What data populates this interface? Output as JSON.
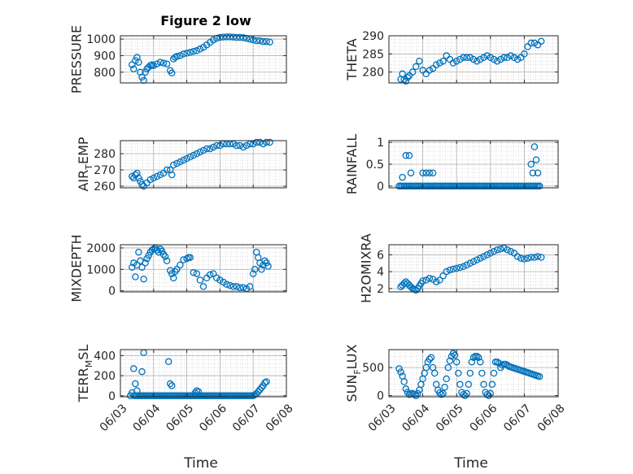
{
  "figure_title": "Figure 2 low",
  "marker_color": "#0072BD",
  "chart_data": [
    {
      "id": "pressure",
      "type": "scatter",
      "title": "Figure 2 low",
      "ylabel": "PRESSURE",
      "ylabel_sub": null,
      "ylim": [
        735,
        1020
      ],
      "yticks": [
        800,
        900,
        1000
      ],
      "xlim": [
        0,
        5
      ],
      "xticks": [
        "06/03",
        "06/04",
        "06/05",
        "06/06",
        "06/07",
        "06/08"
      ],
      "xlabel": "",
      "grid": true,
      "x": [
        0.35,
        0.4,
        0.45,
        0.5,
        0.55,
        0.6,
        0.65,
        0.7,
        0.75,
        0.8,
        0.85,
        0.9,
        0.95,
        1.0,
        1.1,
        1.2,
        1.3,
        1.4,
        1.5,
        1.55,
        1.6,
        1.65,
        1.7,
        1.8,
        1.9,
        2.0,
        2.1,
        2.2,
        2.3,
        2.4,
        2.5,
        2.6,
        2.7,
        2.8,
        2.9,
        3.0,
        3.1,
        3.2,
        3.3,
        3.4,
        3.5,
        3.6,
        3.7,
        3.8,
        3.9,
        4.0,
        4.1,
        4.2,
        4.3,
        4.4,
        4.5
      ],
      "y": [
        845,
        820,
        870,
        890,
        860,
        800,
        770,
        750,
        800,
        820,
        830,
        840,
        845,
        840,
        850,
        860,
        855,
        850,
        810,
        795,
        880,
        890,
        895,
        900,
        910,
        915,
        920,
        925,
        930,
        940,
        950,
        965,
        980,
        995,
        1005,
        1010,
        1012,
        1013,
        1013,
        1012,
        1010,
        1010,
        1008,
        1005,
        1000,
        995,
        990,
        990,
        985,
        985,
        982
      ]
    },
    {
      "id": "theta",
      "type": "scatter",
      "ylabel": "THETA",
      "ylabel_sub": null,
      "ylim": [
        277,
        290
      ],
      "yticks": [
        280,
        285,
        290
      ],
      "xlim": [
        0,
        5
      ],
      "xticks": [
        "06/03",
        "06/04",
        "06/05",
        "06/06",
        "06/07",
        "06/08"
      ],
      "xlabel": "",
      "grid": true,
      "x": [
        0.35,
        0.4,
        0.45,
        0.5,
        0.55,
        0.6,
        0.7,
        0.8,
        0.9,
        1.0,
        1.1,
        1.2,
        1.3,
        1.4,
        1.5,
        1.6,
        1.7,
        1.8,
        1.9,
        2.0,
        2.1,
        2.2,
        2.3,
        2.4,
        2.5,
        2.6,
        2.7,
        2.8,
        2.9,
        3.0,
        3.1,
        3.2,
        3.3,
        3.4,
        3.5,
        3.6,
        3.7,
        3.8,
        3.9,
        4.0,
        4.1,
        4.2,
        4.3,
        4.4,
        4.5
      ],
      "y": [
        278,
        279.5,
        278,
        277.5,
        278.5,
        279,
        280,
        281.5,
        283,
        280.5,
        279.5,
        280.5,
        281,
        282,
        282.5,
        283,
        284.5,
        283.5,
        282.5,
        283,
        283.5,
        284,
        284,
        284,
        283.5,
        283,
        283.5,
        284,
        284.5,
        284,
        283.5,
        283,
        283.5,
        284,
        284,
        284.5,
        284,
        283.5,
        284,
        285,
        287,
        288,
        288,
        287.5,
        288.5
      ]
    },
    {
      "id": "air_temp",
      "type": "scatter",
      "ylabel": "AIR",
      "ylabel_sub": "T",
      "ylabel_end": "EMP",
      "ylim": [
        259,
        288
      ],
      "yticks": [
        260,
        270,
        280
      ],
      "xlim": [
        0,
        5
      ],
      "xticks": [
        "06/03",
        "06/04",
        "06/05",
        "06/06",
        "06/07",
        "06/08"
      ],
      "xlabel": "",
      "grid": true,
      "x": [
        0.35,
        0.4,
        0.45,
        0.5,
        0.55,
        0.6,
        0.65,
        0.7,
        0.8,
        0.9,
        1.0,
        1.1,
        1.2,
        1.3,
        1.4,
        1.5,
        1.55,
        1.6,
        1.7,
        1.8,
        1.9,
        2.0,
        2.1,
        2.2,
        2.3,
        2.4,
        2.5,
        2.6,
        2.7,
        2.8,
        2.9,
        3.0,
        3.1,
        3.2,
        3.3,
        3.4,
        3.5,
        3.6,
        3.7,
        3.8,
        3.9,
        4.0,
        4.1,
        4.2,
        4.3,
        4.4,
        4.5
      ],
      "y": [
        266,
        265,
        267,
        268,
        265,
        263,
        261,
        260,
        262,
        264,
        265,
        266,
        267,
        268,
        270,
        270,
        267,
        273,
        274,
        275,
        276,
        277,
        278,
        279,
        280,
        281,
        282,
        283,
        283,
        284,
        285,
        285,
        286,
        286,
        286,
        286,
        285,
        285,
        284,
        285,
        286,
        286,
        287,
        287,
        286,
        287,
        287
      ]
    },
    {
      "id": "rainfall",
      "type": "scatter",
      "ylabel": "RAINFALL",
      "ylabel_sub": null,
      "ylim": [
        -0.04,
        1.04
      ],
      "yticks": [
        0,
        0.5,
        1
      ],
      "xlim": [
        0,
        5
      ],
      "xticks": [
        "06/03",
        "06/04",
        "06/05",
        "06/06",
        "06/07",
        "06/08"
      ],
      "xlabel": "",
      "grid": true,
      "x": [
        0.3,
        0.35,
        0.4,
        0.45,
        0.5,
        0.55,
        0.6,
        0.65,
        0.7,
        0.75,
        0.8,
        0.85,
        0.9,
        0.95,
        1.0,
        1.05,
        1.1,
        1.15,
        1.2,
        1.25,
        1.3,
        1.35,
        1.4,
        1.45,
        1.5,
        1.55,
        1.6,
        1.65,
        1.7,
        1.75,
        1.8,
        1.85,
        1.9,
        1.95,
        2.0,
        2.05,
        2.1,
        2.15,
        2.2,
        2.25,
        2.3,
        2.35,
        2.4,
        2.45,
        2.5,
        2.55,
        2.6,
        2.65,
        2.7,
        2.75,
        2.8,
        2.85,
        2.9,
        2.95,
        3.0,
        3.05,
        3.1,
        3.15,
        3.2,
        3.25,
        3.3,
        3.35,
        3.4,
        3.45,
        3.5,
        3.55,
        3.6,
        3.65,
        3.7,
        3.75,
        3.8,
        3.85,
        3.9,
        3.95,
        4.0,
        4.05,
        4.1,
        4.15,
        4.2,
        4.25,
        4.3,
        4.35,
        4.4,
        4.45,
        0.4,
        0.5,
        0.6,
        0.65,
        1.0,
        1.1,
        1.2,
        1.3,
        4.2,
        4.25,
        4.3,
        4.35,
        4.4,
        4.45
      ],
      "y": [
        0,
        0,
        0,
        0,
        0,
        0,
        0,
        0,
        0,
        0,
        0,
        0,
        0,
        0,
        0,
        0,
        0,
        0,
        0,
        0,
        0,
        0,
        0,
        0,
        0,
        0,
        0,
        0,
        0,
        0,
        0,
        0,
        0,
        0,
        0,
        0,
        0,
        0,
        0,
        0,
        0,
        0,
        0,
        0,
        0,
        0,
        0,
        0,
        0,
        0,
        0,
        0,
        0,
        0,
        0,
        0,
        0,
        0,
        0,
        0,
        0,
        0,
        0,
        0,
        0,
        0,
        0,
        0,
        0,
        0,
        0,
        0,
        0,
        0,
        0,
        0,
        0,
        0,
        0,
        0,
        0,
        0,
        0,
        0,
        0.2,
        0.7,
        0.7,
        0.3,
        0.3,
        0.3,
        0.3,
        0.3,
        0.5,
        0.3,
        0.9,
        0.6,
        0.3,
        0
      ]
    },
    {
      "id": "mixdepth",
      "type": "scatter",
      "ylabel": "MIXDEPTH",
      "ylabel_sub": null,
      "ylim": [
        -50,
        2150
      ],
      "yticks": [
        0,
        1000,
        2000
      ],
      "xlim": [
        0,
        5
      ],
      "xticks": [
        "06/03",
        "06/04",
        "06/05",
        "06/06",
        "06/07",
        "06/08"
      ],
      "xlabel": "",
      "grid": true,
      "x": [
        0.35,
        0.4,
        0.45,
        0.5,
        0.55,
        0.6,
        0.65,
        0.7,
        0.75,
        0.8,
        0.85,
        0.9,
        0.95,
        1.0,
        1.05,
        1.1,
        1.15,
        1.2,
        1.25,
        1.3,
        1.35,
        1.4,
        1.5,
        1.55,
        1.6,
        1.65,
        1.7,
        1.8,
        1.9,
        2.0,
        2.05,
        2.1,
        2.2,
        2.3,
        2.4,
        2.5,
        2.6,
        2.7,
        2.8,
        2.9,
        3.0,
        3.1,
        3.2,
        3.3,
        3.4,
        3.5,
        3.6,
        3.7,
        3.8,
        3.9,
        4.0,
        4.05,
        4.1,
        4.15,
        4.2,
        4.25,
        4.3,
        4.35,
        4.4,
        4.45
      ],
      "y": [
        1100,
        1300,
        650,
        1200,
        1800,
        1400,
        1100,
        550,
        1300,
        1500,
        1650,
        1800,
        1900,
        1950,
        2000,
        1900,
        1800,
        1950,
        1850,
        1700,
        1600,
        1400,
        950,
        800,
        600,
        900,
        1000,
        1200,
        1450,
        1500,
        1550,
        1550,
        850,
        800,
        500,
        200,
        600,
        750,
        800,
        600,
        500,
        400,
        300,
        250,
        200,
        200,
        150,
        150,
        100,
        200,
        800,
        1000,
        1800,
        1550,
        1300,
        1000,
        1200,
        1400,
        1300,
        1150
      ]
    },
    {
      "id": "h2omixra",
      "type": "scatter",
      "ylabel": "H2OMIXRA",
      "ylabel_sub": null,
      "ylim": [
        1.6,
        7.2
      ],
      "yticks": [
        2,
        4,
        6
      ],
      "xlim": [
        0,
        5
      ],
      "xticks": [
        "06/03",
        "06/04",
        "06/05",
        "06/06",
        "06/07",
        "06/08"
      ],
      "xlabel": "",
      "grid": true,
      "x": [
        0.35,
        0.4,
        0.45,
        0.5,
        0.55,
        0.6,
        0.65,
        0.7,
        0.75,
        0.8,
        0.85,
        0.9,
        0.95,
        1.0,
        1.1,
        1.2,
        1.3,
        1.4,
        1.5,
        1.6,
        1.7,
        1.8,
        1.9,
        2.0,
        2.1,
        2.2,
        2.3,
        2.4,
        2.5,
        2.6,
        2.7,
        2.8,
        2.9,
        3.0,
        3.1,
        3.2,
        3.3,
        3.4,
        3.5,
        3.6,
        3.7,
        3.8,
        3.9,
        4.0,
        4.1,
        4.2,
        4.3,
        4.4,
        4.5
      ],
      "y": [
        2.2,
        2.4,
        2.6,
        2.8,
        2.6,
        2.4,
        2.2,
        2.0,
        1.9,
        1.8,
        2.0,
        2.3,
        2.6,
        2.9,
        3.0,
        3.2,
        3.1,
        2.8,
        3.0,
        3.5,
        4.0,
        4.2,
        4.3,
        4.4,
        4.5,
        4.6,
        4.8,
        5.0,
        5.2,
        5.4,
        5.6,
        5.8,
        6.0,
        6.2,
        6.4,
        6.6,
        6.7,
        6.8,
        6.6,
        6.4,
        6.2,
        5.8,
        5.6,
        5.5,
        5.6,
        5.7,
        5.7,
        5.8,
        5.7
      ]
    },
    {
      "id": "terr_msl",
      "type": "scatter",
      "ylabel": "TERR",
      "ylabel_sub": "M",
      "ylabel_end": "SL",
      "ylim": [
        -10,
        460
      ],
      "yticks": [
        0,
        200,
        400
      ],
      "xlim": [
        0,
        5
      ],
      "xticks": [
        "06/03",
        "06/04",
        "06/05",
        "06/06",
        "06/07",
        "06/08"
      ],
      "xlabel": "Time",
      "grid": true,
      "x": [
        0.3,
        0.35,
        0.4,
        0.45,
        0.5,
        0.55,
        0.6,
        0.65,
        0.7,
        0.75,
        0.8,
        0.85,
        0.9,
        0.95,
        1.0,
        1.05,
        1.1,
        1.15,
        1.2,
        1.25,
        1.3,
        1.35,
        1.4,
        1.45,
        1.5,
        1.55,
        1.6,
        1.65,
        1.7,
        1.75,
        1.8,
        1.85,
        1.9,
        1.95,
        2.0,
        2.05,
        2.1,
        2.15,
        2.2,
        2.25,
        2.3,
        2.35,
        2.4,
        2.45,
        2.5,
        2.55,
        2.6,
        2.65,
        2.7,
        2.75,
        2.8,
        2.85,
        2.9,
        2.95,
        3.0,
        3.05,
        3.1,
        3.15,
        3.2,
        3.25,
        3.3,
        3.35,
        3.4,
        3.45,
        3.5,
        3.55,
        3.6,
        3.65,
        3.7,
        3.75,
        3.8,
        3.85,
        3.9,
        3.95,
        4.0,
        4.05,
        4.1,
        4.15,
        4.2,
        4.25,
        4.3,
        4.35,
        4.4,
        0.4,
        0.45,
        0.5,
        0.65,
        0.7,
        1.45,
        1.5,
        1.55,
        2.25,
        2.3,
        2.35
      ],
      "y": [
        0,
        30,
        0,
        0,
        0,
        0,
        0,
        0,
        0,
        0,
        0,
        0,
        0,
        0,
        0,
        0,
        0,
        0,
        0,
        0,
        0,
        0,
        0,
        0,
        0,
        0,
        0,
        0,
        0,
        0,
        0,
        0,
        0,
        0,
        0,
        0,
        0,
        0,
        0,
        0,
        0,
        0,
        0,
        0,
        0,
        0,
        0,
        0,
        0,
        0,
        0,
        0,
        0,
        0,
        0,
        0,
        0,
        0,
        0,
        0,
        0,
        0,
        0,
        0,
        0,
        0,
        0,
        0,
        0,
        0,
        0,
        0,
        0,
        0,
        0,
        10,
        20,
        40,
        60,
        80,
        100,
        130,
        140,
        270,
        120,
        50,
        240,
        430,
        340,
        120,
        100,
        30,
        50,
        40
      ]
    },
    {
      "id": "sun_flux",
      "type": "scatter",
      "ylabel": "SUN",
      "ylabel_sub": "F",
      "ylabel_end": "LUX",
      "ylim": [
        -20,
        820
      ],
      "yticks": [
        0,
        500
      ],
      "xlim": [
        0,
        5
      ],
      "xticks": [
        "06/03",
        "06/04",
        "06/05",
        "06/06",
        "06/07",
        "06/08"
      ],
      "xlabel": "Time",
      "grid": true,
      "x": [
        0.3,
        0.35,
        0.4,
        0.45,
        0.5,
        0.55,
        0.6,
        0.65,
        0.7,
        0.75,
        0.8,
        0.85,
        0.9,
        0.95,
        1.0,
        1.05,
        1.1,
        1.15,
        1.2,
        1.25,
        1.3,
        1.35,
        1.4,
        1.45,
        1.5,
        1.55,
        1.6,
        1.65,
        1.7,
        1.75,
        1.8,
        1.85,
        1.9,
        1.95,
        2.0,
        2.05,
        2.1,
        2.15,
        2.2,
        2.25,
        2.3,
        2.35,
        2.4,
        2.45,
        2.5,
        2.55,
        2.6,
        2.65,
        2.7,
        2.75,
        2.8,
        2.85,
        2.9,
        2.95,
        3.0,
        3.05,
        3.1,
        3.15,
        3.2,
        3.25,
        3.3,
        3.35,
        3.4,
        3.45,
        3.5,
        3.55,
        3.6,
        3.65,
        3.7,
        3.75,
        3.8,
        3.85,
        3.9,
        3.95,
        4.0,
        4.05,
        4.1,
        4.15,
        4.2,
        4.25,
        4.3,
        4.35,
        4.4,
        4.45
      ],
      "y": [
        480,
        420,
        350,
        250,
        120,
        60,
        20,
        30,
        40,
        20,
        0,
        40,
        100,
        200,
        300,
        400,
        500,
        600,
        650,
        680,
        500,
        400,
        200,
        100,
        50,
        20,
        40,
        150,
        300,
        500,
        620,
        700,
        750,
        720,
        600,
        400,
        200,
        60,
        20,
        0,
        40,
        200,
        400,
        600,
        680,
        700,
        700,
        680,
        600,
        400,
        200,
        60,
        20,
        0,
        40,
        200,
        400,
        600,
        600,
        580,
        500,
        540,
        560,
        560,
        540,
        520,
        510,
        500,
        490,
        480,
        470,
        460,
        450,
        440,
        430,
        420,
        410,
        400,
        390,
        380,
        370,
        360,
        350,
        340
      ]
    }
  ]
}
